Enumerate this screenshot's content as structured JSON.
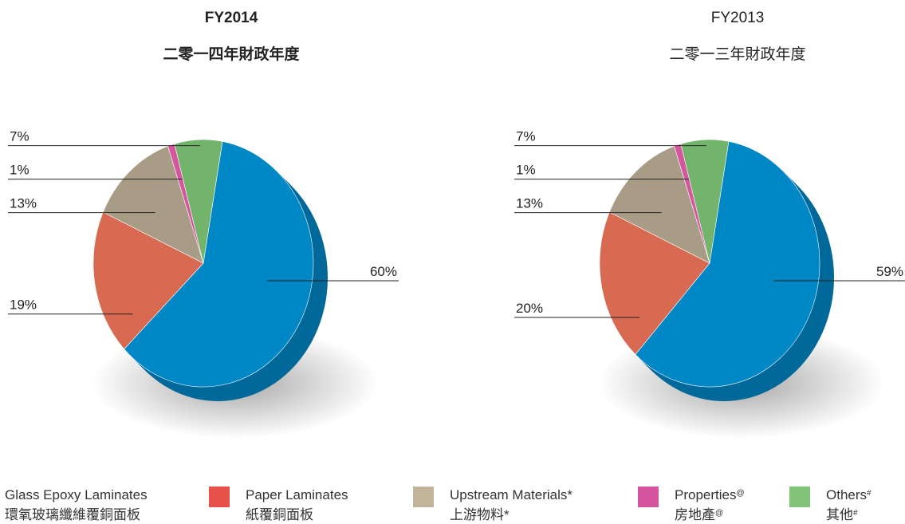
{
  "chart_data": [
    {
      "type": "pie",
      "title": "FY2014",
      "subtitle": "二零一四年財政年度",
      "categories": [
        "Glass Epoxy Laminates",
        "Paper Laminates",
        "Upstream Materials",
        "Properties",
        "Others"
      ],
      "values": [
        60,
        19,
        13,
        1,
        7
      ],
      "value_labels": [
        "60%",
        "19%",
        "13%",
        "1%",
        "7%"
      ]
    },
    {
      "type": "pie",
      "title": "FY2013",
      "subtitle": "二零一三年財政年度",
      "categories": [
        "Glass Epoxy Laminates",
        "Paper Laminates",
        "Upstream Materials",
        "Properties",
        "Others"
      ],
      "values": [
        59,
        20,
        13,
        1,
        7
      ],
      "value_labels": [
        "59%",
        "20%",
        "13%",
        "1%",
        "7%"
      ]
    }
  ],
  "legend": [
    {
      "name": "Glass Epoxy Laminates",
      "name_zh": "環氧玻璃纖維覆銅面板",
      "color": "#0087c6"
    },
    {
      "name": "Paper Laminates",
      "name_zh": "紙覆銅面板",
      "color": "#e8504a"
    },
    {
      "name": "Upstream Materials*",
      "name_zh": "上游物料*",
      "color": "#c2b49a"
    },
    {
      "name": "Properties",
      "name_zh": "房地產",
      "note": "@",
      "color": "#d6559f"
    },
    {
      "name": "Others",
      "name_zh": "其他",
      "note": "#",
      "color": "#82c37a"
    }
  ]
}
